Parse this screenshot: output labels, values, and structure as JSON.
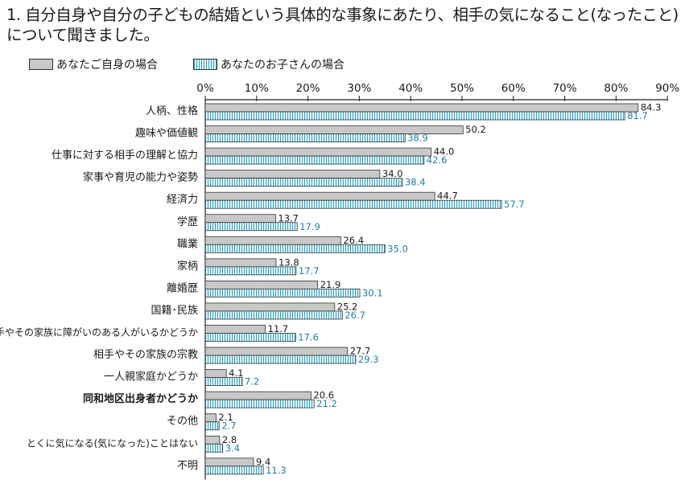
{
  "title_line1": "1. 自分自身や自分の子どもの結婚という具体的な事象にあたり、相手の気になること(なったこと)",
  "title_line2": "について聞きました。",
  "colors": {
    "self": "#c8c8c8",
    "child_stripe": "#2aa2c8",
    "child_label": "#1f7ea8"
  },
  "chart_data": {
    "type": "bar",
    "orientation": "horizontal",
    "categories": [
      "人柄、性格",
      "趣味や価値観",
      "仕事に対する相手の理解と協力",
      "家事や育児の能力や姿勢",
      "経済力",
      "学歴",
      "職業",
      "家柄",
      "離婚歴",
      "国籍･民族",
      "相手やその家族に障がいのある人がいるかどうか",
      "相手やその家族の宗教",
      "一人親家庭かどうか",
      "同和地区出身者かどうか",
      "その他",
      "とくに気になる(気になった)ことはない",
      "不明"
    ],
    "bold_category": "同和地区出身者かどうか",
    "series": [
      {
        "name": "あなたご自身の場合",
        "values": [
          84.3,
          50.2,
          44.0,
          34.0,
          44.7,
          13.7,
          26.4,
          13.8,
          21.9,
          25.2,
          11.7,
          27.7,
          4.1,
          20.6,
          2.1,
          2.8,
          9.4
        ]
      },
      {
        "name": "あなたのお子さんの場合",
        "values": [
          81.7,
          38.9,
          42.6,
          38.4,
          57.7,
          17.9,
          35.0,
          17.7,
          30.1,
          26.7,
          17.6,
          29.3,
          7.2,
          21.2,
          2.7,
          3.4,
          11.3
        ]
      }
    ],
    "xticks": [
      "0%",
      "10%",
      "20%",
      "30%",
      "40%",
      "50%",
      "60%",
      "70%",
      "80%",
      "90%"
    ],
    "xlim": [
      0,
      90
    ],
    "legend": "top-left",
    "grid": false
  }
}
